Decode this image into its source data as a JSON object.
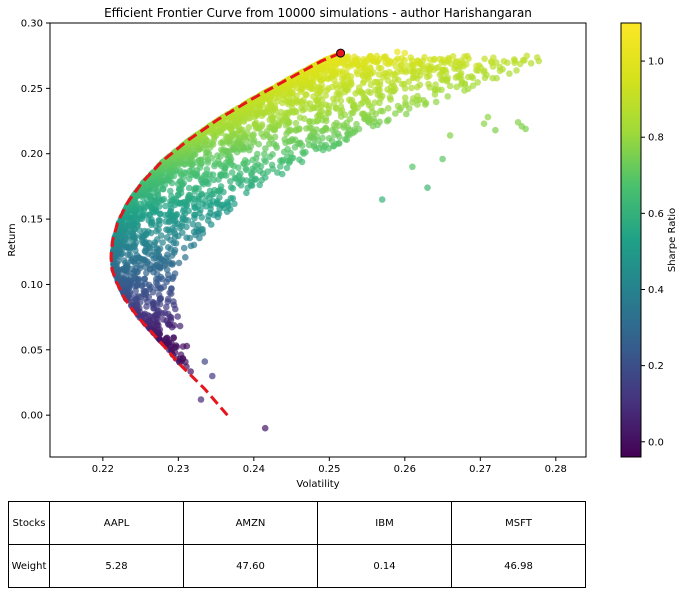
{
  "chart_data": {
    "type": "scatter",
    "title": "Efficient Frontier Curve from 10000 simulations - author Harishangaran",
    "xlabel": "Volatility",
    "ylabel": "Return",
    "xlim": [
      0.213,
      0.284
    ],
    "ylim": [
      -0.032,
      0.3
    ],
    "xticks": [
      "0.22",
      "0.23",
      "0.24",
      "0.25",
      "0.26",
      "0.27",
      "0.28"
    ],
    "xtick_values": [
      0.22,
      0.23,
      0.24,
      0.25,
      0.26,
      0.27,
      0.28
    ],
    "yticks": [
      "0.00",
      "0.05",
      "0.10",
      "0.15",
      "0.20",
      "0.25",
      "0.30"
    ],
    "ytick_values": [
      0.0,
      0.05,
      0.1,
      0.15,
      0.2,
      0.25,
      0.3
    ],
    "grid": false,
    "colormap": "viridis",
    "point_alpha": 0.7,
    "colorbar": {
      "label": "Sharpe Ratio",
      "range": [
        -0.04,
        1.1
      ],
      "ticks": [
        "0.0",
        "0.2",
        "0.4",
        "0.6",
        "0.8",
        "1.0"
      ],
      "tick_values": [
        0.0,
        0.2,
        0.4,
        0.6,
        0.8,
        1.0
      ]
    },
    "simulations": 10000,
    "frontier_curve": {
      "color": "#e8141c",
      "style": "dashed",
      "x": [
        0.2365,
        0.2335,
        0.23,
        0.227,
        0.2245,
        0.2228,
        0.2218,
        0.2212,
        0.2211,
        0.2213,
        0.222,
        0.2233,
        0.2252,
        0.2278,
        0.2312,
        0.2352,
        0.2398,
        0.2448,
        0.249,
        0.2515
      ],
      "y": [
        0.0,
        0.02,
        0.04,
        0.06,
        0.076,
        0.09,
        0.102,
        0.112,
        0.122,
        0.134,
        0.148,
        0.163,
        0.178,
        0.194,
        0.21,
        0.226,
        0.242,
        0.258,
        0.271,
        0.277
      ]
    },
    "optimal_point": {
      "x": 0.2515,
      "y": 0.277,
      "color": "#e8141c"
    },
    "outlier_points": [
      {
        "x": 0.2415,
        "y": -0.01,
        "sharpe": 0.02
      },
      {
        "x": 0.2695,
        "y": 0.267,
        "sharpe": 0.93
      },
      {
        "x": 0.2705,
        "y": 0.223,
        "sharpe": 0.78
      },
      {
        "x": 0.271,
        "y": 0.228,
        "sharpe": 0.79
      },
      {
        "x": 0.272,
        "y": 0.218,
        "sharpe": 0.76
      },
      {
        "x": 0.275,
        "y": 0.224,
        "sharpe": 0.77
      },
      {
        "x": 0.2755,
        "y": 0.221,
        "sharpe": 0.76
      },
      {
        "x": 0.276,
        "y": 0.219,
        "sharpe": 0.76
      },
      {
        "x": 0.266,
        "y": 0.214,
        "sharpe": 0.77
      },
      {
        "x": 0.265,
        "y": 0.196,
        "sharpe": 0.7
      },
      {
        "x": 0.263,
        "y": 0.174,
        "sharpe": 0.63
      },
      {
        "x": 0.257,
        "y": 0.165,
        "sharpe": 0.61
      },
      {
        "x": 0.261,
        "y": 0.19,
        "sharpe": 0.69
      },
      {
        "x": 0.26,
        "y": 0.277,
        "sharpe": 1.02
      },
      {
        "x": 0.259,
        "y": 0.278,
        "sharpe": 1.03
      },
      {
        "x": 0.258,
        "y": 0.27,
        "sharpe": 1.0
      },
      {
        "x": 0.233,
        "y": 0.012,
        "sharpe": 0.08
      },
      {
        "x": 0.2345,
        "y": 0.03,
        "sharpe": 0.13
      },
      {
        "x": 0.2335,
        "y": 0.041,
        "sharpe": 0.17
      }
    ]
  },
  "table": {
    "header": [
      "Stocks",
      "AAPL",
      "AMZN",
      "IBM",
      "MSFT"
    ],
    "row": [
      "Weight",
      "5.28",
      "47.60",
      "0.14",
      "46.98"
    ]
  }
}
